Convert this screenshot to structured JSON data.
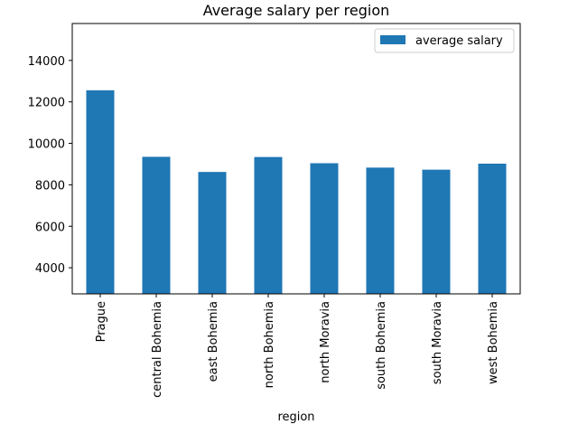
{
  "chart_data": {
    "type": "bar",
    "title": "Average salary per region",
    "xlabel": "region",
    "ylabel": "",
    "categories": [
      "Prague",
      "central Bohemia",
      "east Bohemia",
      "north Bohemia",
      "north Moravia",
      "south Bohemia",
      "south Moravia",
      "west Bohemia"
    ],
    "series": [
      {
        "name": "average salary",
        "values": [
          12560,
          9350,
          8620,
          9340,
          9040,
          8830,
          8730,
          9020
        ]
      }
    ],
    "ylim": [
      2740,
      15780
    ],
    "yticks": [
      4000,
      6000,
      8000,
      10000,
      12000,
      14000
    ],
    "legend_position": "top-right",
    "grid": false,
    "colors": {
      "bar": "#1f77b4"
    }
  }
}
